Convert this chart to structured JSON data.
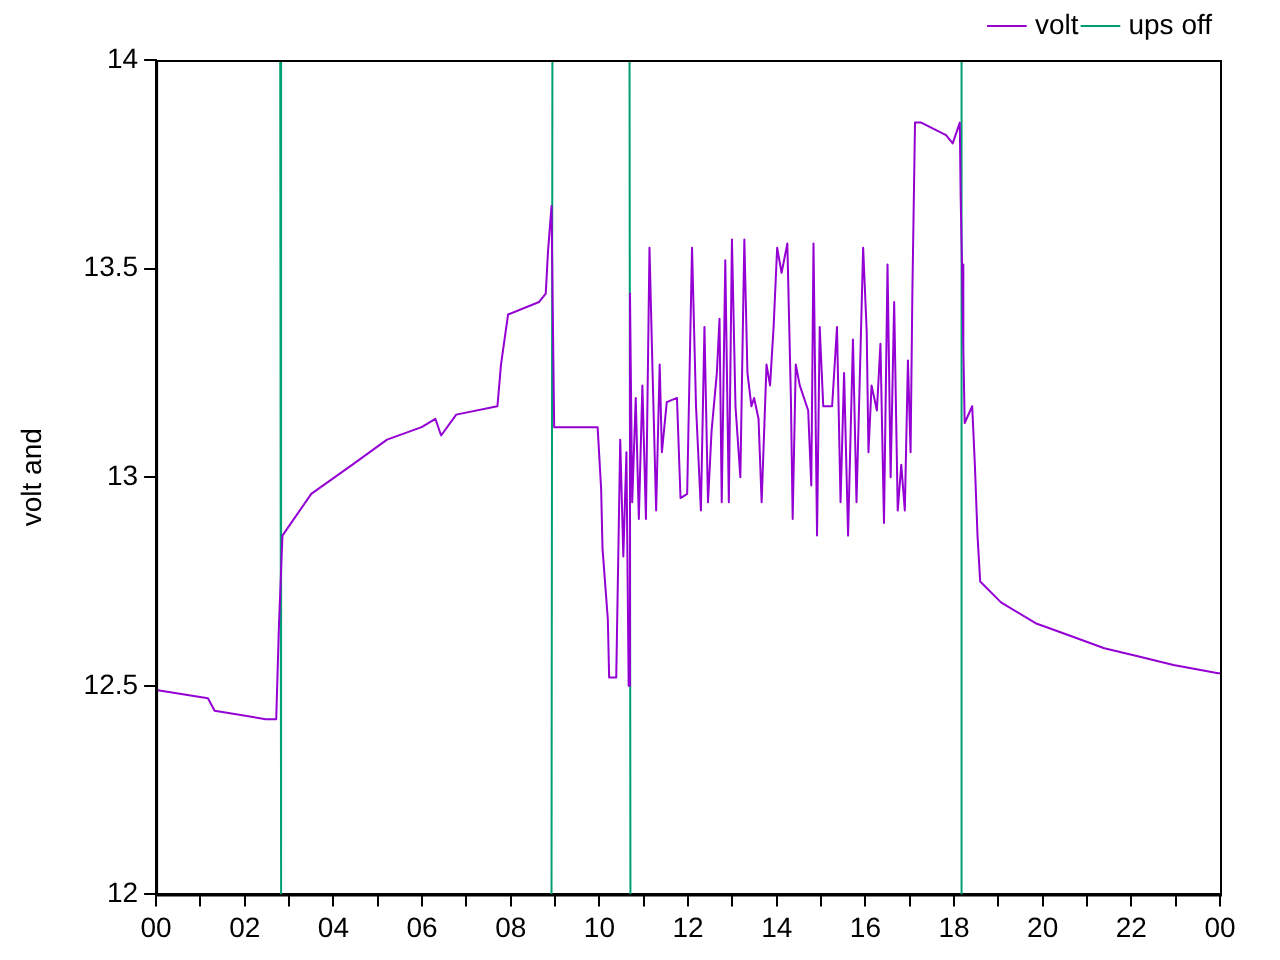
{
  "chart_data": {
    "type": "line",
    "ylabel": "volt and",
    "xlim": [
      0,
      24
    ],
    "ylim": [
      12,
      14
    ],
    "xticks": [
      {
        "value": 0,
        "label": "00"
      },
      {
        "value": 1,
        "label": null
      },
      {
        "value": 2,
        "label": "02"
      },
      {
        "value": 3,
        "label": null
      },
      {
        "value": 4,
        "label": "04"
      },
      {
        "value": 5,
        "label": null
      },
      {
        "value": 6,
        "label": "06"
      },
      {
        "value": 7,
        "label": null
      },
      {
        "value": 8,
        "label": "08"
      },
      {
        "value": 9,
        "label": null
      },
      {
        "value": 10,
        "label": "10"
      },
      {
        "value": 11,
        "label": null
      },
      {
        "value": 12,
        "label": "12"
      },
      {
        "value": 13,
        "label": null
      },
      {
        "value": 14,
        "label": "14"
      },
      {
        "value": 15,
        "label": null
      },
      {
        "value": 16,
        "label": "16"
      },
      {
        "value": 17,
        "label": null
      },
      {
        "value": 18,
        "label": "18"
      },
      {
        "value": 19,
        "label": null
      },
      {
        "value": 20,
        "label": "20"
      },
      {
        "value": 21,
        "label": null
      },
      {
        "value": 22,
        "label": "22"
      },
      {
        "value": 23,
        "label": null
      },
      {
        "value": 24,
        "label": "00"
      }
    ],
    "yticks": [
      12,
      12.5,
      13,
      13.5,
      14
    ],
    "grid": false,
    "legend": "top right",
    "marker": "none",
    "line_style": "solid",
    "series": [
      {
        "name": "volt",
        "color": "#9400d3",
        "x": [
          0,
          1.17,
          1.32,
          2.47,
          2.71,
          2.77,
          2.85,
          3.11,
          3.5,
          4.43,
          5.21,
          5.99,
          6.3,
          6.43,
          6.77,
          7.7,
          7.78,
          7.94,
          8.64,
          8.79,
          8.84,
          8.92,
          8.98,
          9.96,
          10.04,
          10.07,
          10.19,
          10.22,
          10.38,
          10.47,
          10.54,
          10.61,
          10.66,
          10.69,
          10.74,
          10.82,
          10.89,
          10.97,
          11.05,
          11.13,
          11.2,
          11.28,
          11.36,
          11.41,
          11.52,
          11.75,
          11.83,
          11.98,
          12.09,
          12.18,
          12.29,
          12.37,
          12.45,
          12.53,
          12.65,
          12.71,
          12.76,
          12.84,
          12.92,
          12.99,
          13.07,
          13.18,
          13.27,
          13.34,
          13.43,
          13.49,
          13.59,
          13.66,
          13.77,
          13.85,
          13.93,
          14.01,
          14.11,
          14.24,
          14.32,
          14.36,
          14.43,
          14.52,
          14.71,
          14.78,
          14.83,
          14.91,
          14.97,
          15.05,
          15.25,
          15.36,
          15.44,
          15.52,
          15.61,
          15.72,
          15.8,
          15.87,
          15.95,
          16.03,
          16.07,
          16.14,
          16.26,
          16.34,
          16.42,
          16.5,
          16.57,
          16.65,
          16.73,
          16.81,
          16.89,
          16.96,
          17.02,
          17.06,
          17.12,
          17.26,
          17.82,
          17.97,
          18.13,
          18.15,
          18.18,
          18.21,
          18.24,
          18.41,
          18.47,
          18.53,
          18.59,
          19.06,
          19.84,
          20.62,
          21.39,
          22.17,
          22.95,
          23.96,
          24
        ],
        "values": [
          12.49,
          12.47,
          12.44,
          12.42,
          12.42,
          12.64,
          12.86,
          12.9,
          12.96,
          13.03,
          13.09,
          13.12,
          13.14,
          13.1,
          13.15,
          13.17,
          13.27,
          13.39,
          13.42,
          13.44,
          13.54,
          13.65,
          13.12,
          13.12,
          12.97,
          12.83,
          12.66,
          12.52,
          12.52,
          13.09,
          12.81,
          13.06,
          12.5,
          13.44,
          12.94,
          13.19,
          12.9,
          13.22,
          12.9,
          13.55,
          13.25,
          12.92,
          13.27,
          13.06,
          13.18,
          13.19,
          12.95,
          12.96,
          13.55,
          13.17,
          12.92,
          13.36,
          12.94,
          13.11,
          13.25,
          13.38,
          12.94,
          13.52,
          12.94,
          13.57,
          13.17,
          13,
          13.57,
          13.25,
          13.17,
          13.19,
          13.14,
          12.94,
          13.27,
          13.22,
          13.36,
          13.55,
          13.49,
          13.56,
          13.19,
          12.9,
          13.27,
          13.22,
          13.16,
          12.98,
          13.56,
          12.86,
          13.36,
          13.17,
          13.17,
          13.36,
          12.94,
          13.25,
          12.86,
          13.33,
          12.94,
          13.22,
          13.55,
          13.35,
          13.06,
          13.22,
          13.16,
          13.32,
          12.89,
          13.51,
          13,
          13.42,
          12.92,
          13.03,
          12.92,
          13.28,
          13.06,
          13.44,
          13.85,
          13.85,
          13.82,
          13.8,
          13.85,
          13.67,
          13.51,
          13.31,
          13.13,
          13.17,
          13.03,
          12.86,
          12.75,
          12.7,
          12.65,
          12.62,
          12.59,
          12.57,
          12.55,
          12.53,
          12.53
        ]
      },
      {
        "name": "ups off",
        "color": "#009e73",
        "x": [
          2.8,
          2.82,
          5,
          8.92,
          8.94,
          10,
          10.68,
          10.7,
          14,
          18.15,
          18.17
        ],
        "values": [
          14,
          12,
          null,
          12,
          14,
          null,
          14,
          12,
          null,
          12,
          14
        ]
      }
    ]
  }
}
